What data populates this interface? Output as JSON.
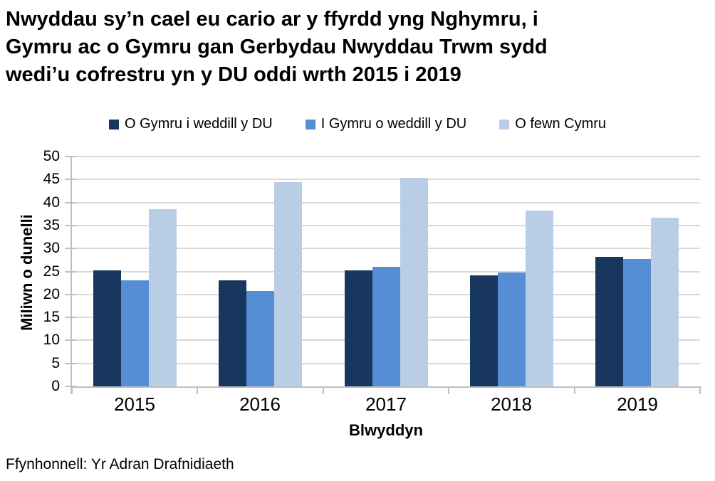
{
  "title": "Nwyddau sy’n cael eu cario ar y ffyrdd yng Nghymru, i Gymru ac o Gymru gan Gerbydau Nwyddau Trwm sydd wedi’u cofrestru yn y DU oddi wrth 2015 i 2019",
  "title_lines": [
    "Nwyddau sy’n cael eu cario ar y ffyrdd yng Nghymru, i",
    "Gymru ac o Gymru gan Gerbydau Nwyddau Trwm sydd",
    "wedi’u cofrestru yn y DU oddi wrth 2015 i 2019"
  ],
  "colors": {
    "series_dark_blue": "#17375E",
    "series_medium_blue": "#558ED5",
    "series_light_blue": "#B9CDE5",
    "gridline": "#D9D9D9",
    "axis": "#BFBFBF",
    "text": "#000000"
  },
  "chart_data": {
    "type": "bar",
    "categories": [
      "2015",
      "2016",
      "2017",
      "2018",
      "2019"
    ],
    "series": [
      {
        "name": "O Gymru i weddill y DU",
        "color": "#17375E",
        "values": [
          25.2,
          23.1,
          25.2,
          24.2,
          28.1
        ]
      },
      {
        "name": "I Gymru o weddill y DU",
        "color": "#558ED5",
        "values": [
          23.1,
          20.8,
          26.0,
          24.8,
          27.7
        ]
      },
      {
        "name": "O fewn Cymru",
        "color": "#B9CDE5",
        "values": [
          38.5,
          44.4,
          45.4,
          38.3,
          36.7
        ]
      }
    ],
    "xlabel": "Blwyddyn",
    "ylabel": "Miliwn o dunelli",
    "ylim": [
      0,
      50
    ],
    "ytick_step": 5,
    "grid": true,
    "legend_position": "top"
  },
  "footer": {
    "source": "Ffynhonnell: Yr Adran Drafnidiaeth"
  }
}
